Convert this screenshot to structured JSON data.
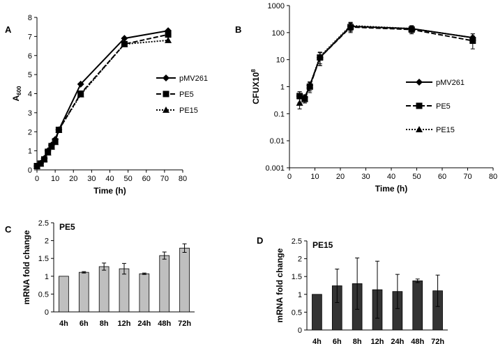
{
  "chart_data": [
    {
      "panel": "A",
      "type": "line",
      "xlabel": "Time (h)",
      "ylabel_main": "A",
      "ylabel_sub": "600",
      "xlim": [
        0,
        80
      ],
      "ylim": [
        0,
        8
      ],
      "xticks": [
        "0",
        "10",
        "20",
        "30",
        "40",
        "50",
        "60",
        "70",
        "80"
      ],
      "yticks": [
        "0",
        "1",
        "2",
        "3",
        "4",
        "5",
        "6",
        "7",
        "8"
      ],
      "legend_position": "right",
      "series": [
        {
          "name": "pMV261",
          "marker": "diamond",
          "dash": "solid",
          "x": [
            0,
            2,
            4,
            6,
            8,
            10,
            12,
            24,
            48,
            72
          ],
          "y": [
            0.2,
            0.35,
            0.6,
            1.0,
            1.3,
            1.6,
            2.1,
            4.5,
            6.9,
            7.3
          ]
        },
        {
          "name": "PE5",
          "marker": "square",
          "dash": "dashed",
          "x": [
            0,
            2,
            4,
            6,
            8,
            10,
            12,
            24,
            48,
            72
          ],
          "y": [
            0.2,
            0.33,
            0.55,
            0.95,
            1.25,
            1.5,
            2.1,
            4.0,
            6.6,
            7.1
          ]
        },
        {
          "name": "PE15",
          "marker": "triangle",
          "dash": "dotted",
          "x": [
            0,
            2,
            4,
            6,
            8,
            10,
            12,
            24,
            48,
            72
          ],
          "y": [
            0.2,
            0.32,
            0.55,
            0.9,
            1.2,
            1.45,
            2.1,
            3.95,
            6.6,
            6.8
          ]
        }
      ]
    },
    {
      "panel": "B",
      "type": "line",
      "scale": "log",
      "xlabel": "Time (h)",
      "ylabel_main": "CFUX10",
      "ylabel_sup": "8",
      "xlim": [
        0,
        80
      ],
      "ylim": [
        0.001,
        1000
      ],
      "xticks": [
        "0",
        "10",
        "20",
        "30",
        "40",
        "50",
        "60",
        "70",
        "80"
      ],
      "yticks": [
        "0.001",
        "0.01",
        "0.1",
        "1",
        "10",
        "100",
        "1000"
      ],
      "legend_position": "right",
      "series": [
        {
          "name": "pMV261",
          "marker": "diamond",
          "dash": "solid",
          "x": [
            4,
            6,
            8,
            12,
            24,
            48,
            72
          ],
          "y": [
            0.45,
            0.4,
            1.1,
            12,
            170,
            140,
            65
          ],
          "err": [
            0.2,
            0.1,
            0.4,
            6,
            60,
            40,
            25
          ]
        },
        {
          "name": "PE5",
          "marker": "square",
          "dash": "dashed",
          "x": [
            4,
            6,
            8,
            12,
            24,
            48,
            72
          ],
          "y": [
            0.45,
            0.35,
            1.0,
            12,
            160,
            130,
            50
          ],
          "err": [
            0.2,
            0.1,
            0.4,
            6,
            60,
            40,
            25
          ]
        },
        {
          "name": "PE15",
          "marker": "triangle",
          "dash": "dotted",
          "x": [
            4,
            6,
            8,
            12,
            24,
            48,
            72
          ],
          "y": [
            0.25,
            0.35,
            1.1,
            13,
            180,
            140,
            65
          ],
          "err": [
            0.1,
            0.1,
            0.4,
            6,
            60,
            40,
            25
          ]
        }
      ]
    },
    {
      "panel": "C",
      "type": "bar",
      "title": "PE5",
      "ylabel": "mRNA  fold change",
      "ylim": [
        0,
        2.5
      ],
      "yticks": [
        "0",
        "0.5",
        "1",
        "1.5",
        "2",
        "2.5"
      ],
      "categories": [
        "4h",
        "6h",
        "8h",
        "12h",
        "24h",
        "48h",
        "72h"
      ],
      "values": [
        1.0,
        1.11,
        1.27,
        1.21,
        1.07,
        1.58,
        1.79
      ],
      "err": [
        0.0,
        0.02,
        0.1,
        0.15,
        0.02,
        0.1,
        0.12
      ],
      "color": "#bfbfbf"
    },
    {
      "panel": "D",
      "type": "bar",
      "title": "PE15",
      "ylabel": "mRNA  fold change",
      "ylim": [
        0,
        2.5
      ],
      "yticks": [
        "0",
        "0.5",
        "1",
        "1.5",
        "2",
        "2.5"
      ],
      "categories": [
        "4h",
        "6h",
        "8h",
        "12h",
        "24h",
        "48h",
        "72h"
      ],
      "values": [
        1.0,
        1.24,
        1.3,
        1.13,
        1.08,
        1.38,
        1.1
      ],
      "err": [
        0.0,
        0.47,
        0.72,
        0.8,
        0.48,
        0.05,
        0.44
      ],
      "color": "#333333"
    }
  ]
}
